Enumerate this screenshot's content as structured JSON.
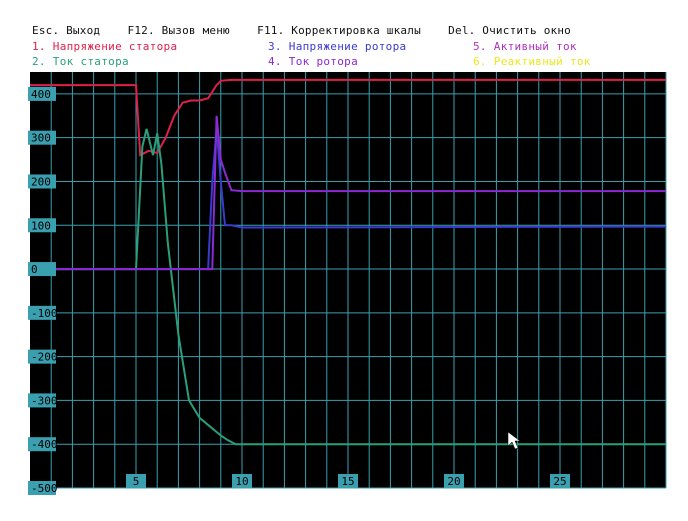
{
  "toolbar": {
    "hotkeys_text": "Esc. Выход    F12. Вызов меню    F11. Корректировка шкалы    Del. Очистить окно"
  },
  "legend": {
    "items": [
      {
        "label": "1. Напряжение статора",
        "color": "#e0204a"
      },
      {
        "label": "2. Ток статора",
        "color": "#2aa07a"
      },
      {
        "label": "3. Напряжение ротора",
        "color": "#3a3ad0"
      },
      {
        "label": "4. Ток ротора",
        "color": "#8a2ad0"
      },
      {
        "label": "5. Активный ток",
        "color": "#b030c0"
      },
      {
        "label": "6. Реактивный ток",
        "color": "#e8e820"
      }
    ]
  },
  "colors": {
    "plot_background": "#000000",
    "grid": "#3aa0b0",
    "axis_labels_bg": "#3aa0b0",
    "cursor": "#ffffff"
  },
  "chart_data": {
    "type": "line",
    "title": "",
    "xlabel": "",
    "ylabel": "",
    "xlim": [
      0,
      30
    ],
    "ylim": [
      -500,
      450
    ],
    "y_ticks": [
      400,
      300,
      200,
      100,
      0,
      -100,
      -200,
      -300,
      -400,
      -500
    ],
    "x_ticks": [
      5,
      10,
      15,
      20,
      25
    ],
    "grid": true,
    "series": [
      {
        "name": "1. Напряжение статора",
        "color": "#e0204a",
        "x": [
          0,
          5.0,
          5.2,
          5.6,
          6.0,
          6.4,
          6.8,
          7.2,
          7.6,
          8.0,
          8.4,
          8.8,
          9.0,
          9.5,
          30
        ],
        "y": [
          420,
          420,
          260,
          270,
          265,
          300,
          350,
          380,
          385,
          385,
          390,
          420,
          430,
          432,
          432
        ]
      },
      {
        "name": "2. Ток статора",
        "color": "#2aa07a",
        "x": [
          0,
          5.0,
          5.3,
          5.5,
          5.8,
          6.0,
          6.2,
          6.5,
          7.0,
          7.5,
          8.0,
          8.5,
          9.0,
          9.3,
          9.7,
          10,
          30
        ],
        "y": [
          0,
          0,
          280,
          320,
          260,
          310,
          240,
          60,
          -150,
          -300,
          -340,
          -360,
          -380,
          -390,
          -400,
          -400,
          -400
        ]
      },
      {
        "name": "3. Напряжение ротора",
        "color": "#3a3ad0",
        "x": [
          0,
          5.0,
          8.4,
          8.6,
          8.8,
          9.0,
          9.2,
          9.5,
          10,
          30
        ],
        "y": [
          0,
          0,
          0,
          200,
          320,
          200,
          100,
          100,
          95,
          97
        ]
      },
      {
        "name": "4. Ток ротора",
        "color": "#8a2ad0",
        "x": [
          0,
          5.0,
          8.6,
          8.8,
          9.0,
          9.2,
          9.5,
          10,
          30
        ],
        "y": [
          0,
          0,
          0,
          350,
          250,
          220,
          180,
          178,
          178
        ]
      }
    ]
  }
}
